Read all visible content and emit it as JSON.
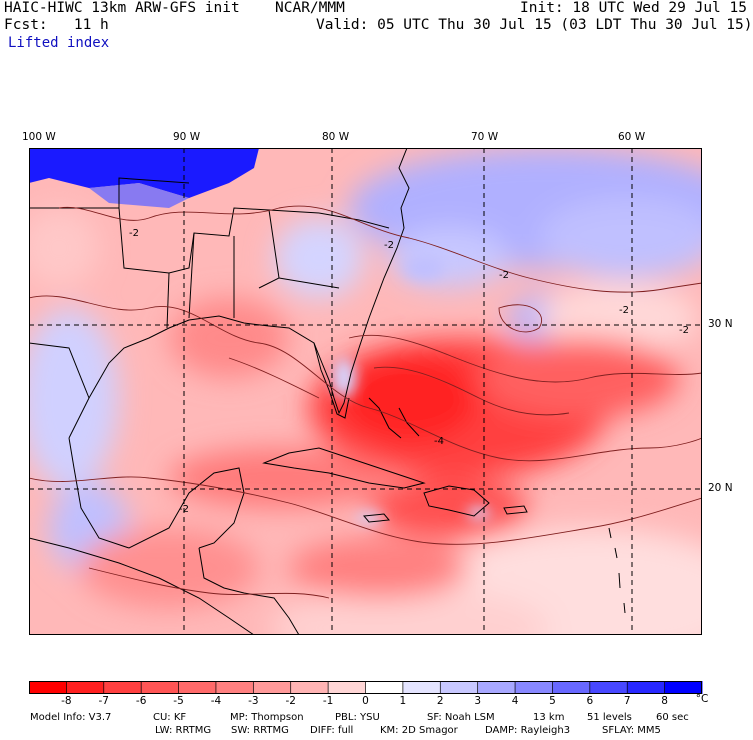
{
  "header": {
    "model": "HAIC-HIWC 13km ARW-GFS init",
    "org": "NCAR/MMM",
    "init": "Init: 18 UTC Wed 29 Jul 15",
    "fcst": "Fcst:   11 h",
    "valid": "Valid: 05 UTC Thu 30 Jul 15 (03 LDT Thu 30 Jul 15)",
    "field": "Lifted index"
  },
  "map": {
    "lon_labels": [
      "100 W",
      "90 W",
      "80 W",
      "70 W",
      "60 W"
    ],
    "lat_labels": [
      "30 N",
      "20 N"
    ],
    "contour_label": "-2",
    "contour_label_alt": "-4"
  },
  "colorbar": {
    "ticks": [
      "-8",
      "-7",
      "-6",
      "-5",
      "-4",
      "-3",
      "-2",
      "-1",
      "0",
      "1",
      "2",
      "3",
      "4",
      "5",
      "6",
      "7",
      "8"
    ],
    "unit": "°C",
    "colors": [
      "#ff0000",
      "#ff2020",
      "#ff4040",
      "#ff5555",
      "#ff6a6a",
      "#ff8080",
      "#ff9a9a",
      "#ffb4b4",
      "#ffd6d6",
      "#ffffff",
      "#e4e4ff",
      "#c8c8ff",
      "#a8a8ff",
      "#8888ff",
      "#6868ff",
      "#4848ff",
      "#2828ff",
      "#0000ff"
    ]
  },
  "model_info": {
    "line1": [
      "Model Info: V3.7",
      "CU: KF",
      "MP: Thompson",
      "PBL: YSU",
      "SF: Noah LSM",
      "13 km",
      "51 levels",
      "60 sec"
    ],
    "line2": [
      "LW: RRTMG",
      "SW: RRTMG",
      "DIFF: full",
      "KM: 2D Smagor",
      "DAMP: Rayleigh3",
      "SFLAY: MM5"
    ]
  }
}
